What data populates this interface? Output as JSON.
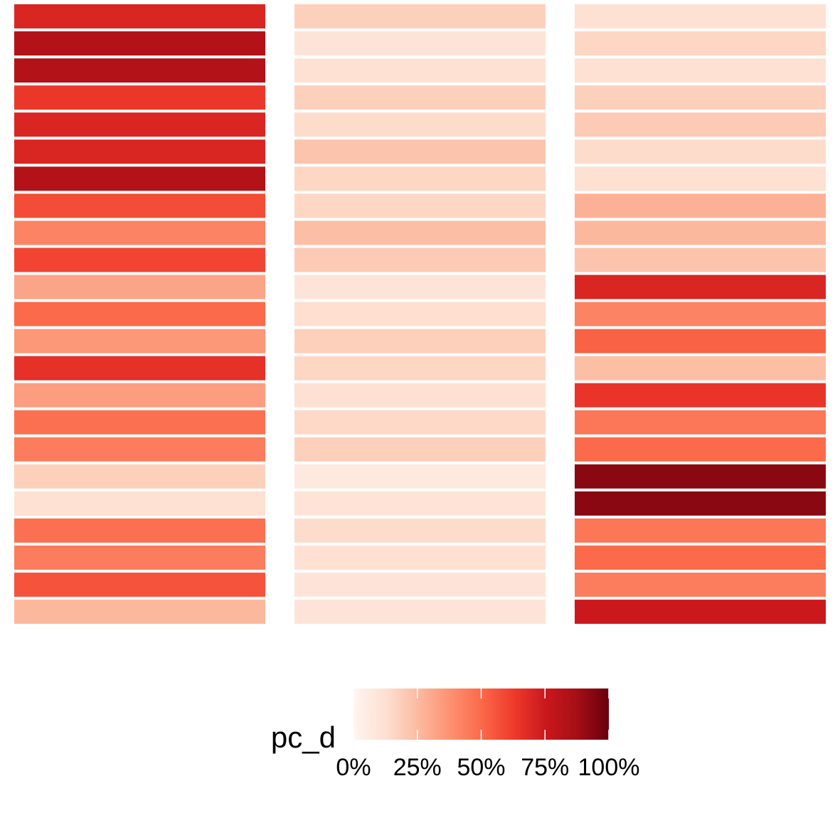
{
  "chart_data": {
    "type": "heatmap",
    "columns": 3,
    "rows": 23,
    "values_pct": [
      [
        70,
        18,
        12
      ],
      [
        83,
        10,
        16
      ],
      [
        83,
        12,
        12
      ],
      [
        64,
        18,
        18
      ],
      [
        70,
        14,
        20
      ],
      [
        70,
        22,
        14
      ],
      [
        83,
        16,
        12
      ],
      [
        58,
        16,
        28
      ],
      [
        42,
        24,
        26
      ],
      [
        60,
        20,
        22
      ],
      [
        32,
        10,
        70
      ],
      [
        50,
        13,
        42
      ],
      [
        36,
        18,
        52
      ],
      [
        66,
        16,
        24
      ],
      [
        34,
        12,
        65
      ],
      [
        48,
        15,
        46
      ],
      [
        44,
        18,
        50
      ],
      [
        18,
        7,
        93
      ],
      [
        12,
        11,
        93
      ],
      [
        48,
        14,
        46
      ],
      [
        44,
        12,
        50
      ],
      [
        56,
        10,
        44
      ],
      [
        26,
        10,
        75
      ]
    ],
    "colorbar": {
      "title": "pc_d",
      "ticks": [
        "0%",
        "25%",
        "50%",
        "75%",
        "100%"
      ],
      "tick_values": [
        0,
        25,
        50,
        75,
        100
      ],
      "range": [
        0,
        100
      ],
      "colors": [
        "#fff5f0",
        "#fee0d2",
        "#fcbba1",
        "#fc9272",
        "#fb6a4a",
        "#ef3b2c",
        "#cb181d",
        "#a50f15",
        "#67000d"
      ]
    },
    "grid": false,
    "legend_position": "bottom"
  }
}
